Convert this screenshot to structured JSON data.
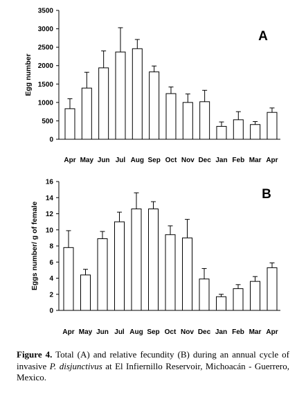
{
  "chart_data": [
    {
      "type": "bar",
      "panel_label": "A",
      "ylabel": "Egg number",
      "xlabel": "",
      "categories": [
        "Apr",
        "May",
        "Jun",
        "Jul",
        "Aug",
        "Sep",
        "Oct",
        "Nov",
        "Dec",
        "Jan",
        "Feb",
        "Mar",
        "Apr"
      ],
      "values": [
        830,
        1390,
        1940,
        2370,
        2460,
        1830,
        1240,
        1000,
        1020,
        350,
        530,
        400,
        730
      ],
      "error_upper": [
        1100,
        1820,
        2400,
        3030,
        2710,
        1990,
        1420,
        1230,
        1330,
        470,
        750,
        480,
        850
      ],
      "ylim": [
        0,
        3500
      ],
      "yticks": [
        "0",
        "500",
        "1000",
        "1500",
        "2000",
        "2500",
        "3000",
        "3500"
      ],
      "grid": false
    },
    {
      "type": "bar",
      "panel_label": "B",
      "ylabel": "Eggs number/ g of female",
      "xlabel": "",
      "categories": [
        "Apr",
        "May",
        "Jun",
        "Jul",
        "Aug",
        "Sep",
        "Oct",
        "Nov",
        "Dec",
        "Jan",
        "Feb",
        "Mar",
        "Apr"
      ],
      "values": [
        7.8,
        4.4,
        8.9,
        11.0,
        12.6,
        12.6,
        9.4,
        9.0,
        3.9,
        1.7,
        2.7,
        3.6,
        5.3
      ],
      "error_upper": [
        9.9,
        5.1,
        9.8,
        12.2,
        14.6,
        13.5,
        10.5,
        11.3,
        5.2,
        2.0,
        3.2,
        4.2,
        5.9
      ],
      "ylim": [
        0,
        16
      ],
      "yticks": [
        "0",
        "2",
        "4",
        "6",
        "8",
        "10",
        "12",
        "14",
        "16"
      ],
      "grid": false
    }
  ],
  "caption": {
    "label": "Figure 4.",
    "text_before_species": " Total (A) and relative fecundity (B) during an annual cycle of invasive ",
    "species": "P. disjunctivus",
    "text_after_species": " at El Infiernillo Reservoir, Michoacán - Guerrero, Mexico."
  }
}
